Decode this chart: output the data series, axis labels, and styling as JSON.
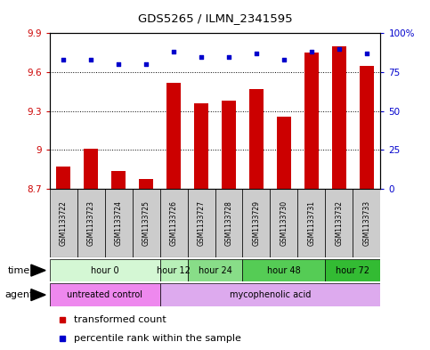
{
  "title": "GDS5265 / ILMN_2341595",
  "samples": [
    "GSM1133722",
    "GSM1133723",
    "GSM1133724",
    "GSM1133725",
    "GSM1133726",
    "GSM1133727",
    "GSM1133728",
    "GSM1133729",
    "GSM1133730",
    "GSM1133731",
    "GSM1133732",
    "GSM1133733"
  ],
  "bar_values": [
    8.87,
    9.01,
    8.84,
    8.78,
    9.52,
    9.36,
    9.38,
    9.47,
    9.26,
    9.75,
    9.8,
    9.65
  ],
  "bar_baseline": 8.7,
  "bar_color": "#cc0000",
  "dot_values_pct": [
    83,
    83,
    80,
    80,
    88,
    85,
    85,
    87,
    83,
    88,
    90,
    87
  ],
  "dot_color": "#0000cc",
  "ylim_left": [
    8.7,
    9.9
  ],
  "ylim_right": [
    0,
    100
  ],
  "yticks_left": [
    8.7,
    9.0,
    9.3,
    9.6,
    9.9
  ],
  "ytick_labels_left": [
    "8.7",
    "9",
    "9.3",
    "9.6",
    "9.9"
  ],
  "yticks_right": [
    0,
    25,
    50,
    75,
    100
  ],
  "ytick_labels_right": [
    "0",
    "25",
    "50",
    "75",
    "100%"
  ],
  "grid_values": [
    9.0,
    9.3,
    9.6,
    9.9
  ],
  "time_groups": [
    {
      "label": "hour 0",
      "start": 0,
      "end": 4,
      "color": "#d4f7d4"
    },
    {
      "label": "hour 12",
      "start": 4,
      "end": 5,
      "color": "#b8f0b8"
    },
    {
      "label": "hour 24",
      "start": 5,
      "end": 7,
      "color": "#88dd88"
    },
    {
      "label": "hour 48",
      "start": 7,
      "end": 10,
      "color": "#55cc55"
    },
    {
      "label": "hour 72",
      "start": 10,
      "end": 12,
      "color": "#33bb33"
    }
  ],
  "agent_groups": [
    {
      "label": "untreated control",
      "start": 0,
      "end": 4,
      "color": "#ee88ee"
    },
    {
      "label": "mycophenolic acid",
      "start": 4,
      "end": 12,
      "color": "#ddaaee"
    }
  ],
  "bar_width": 0.5,
  "xlim": [
    -0.5,
    11.5
  ]
}
